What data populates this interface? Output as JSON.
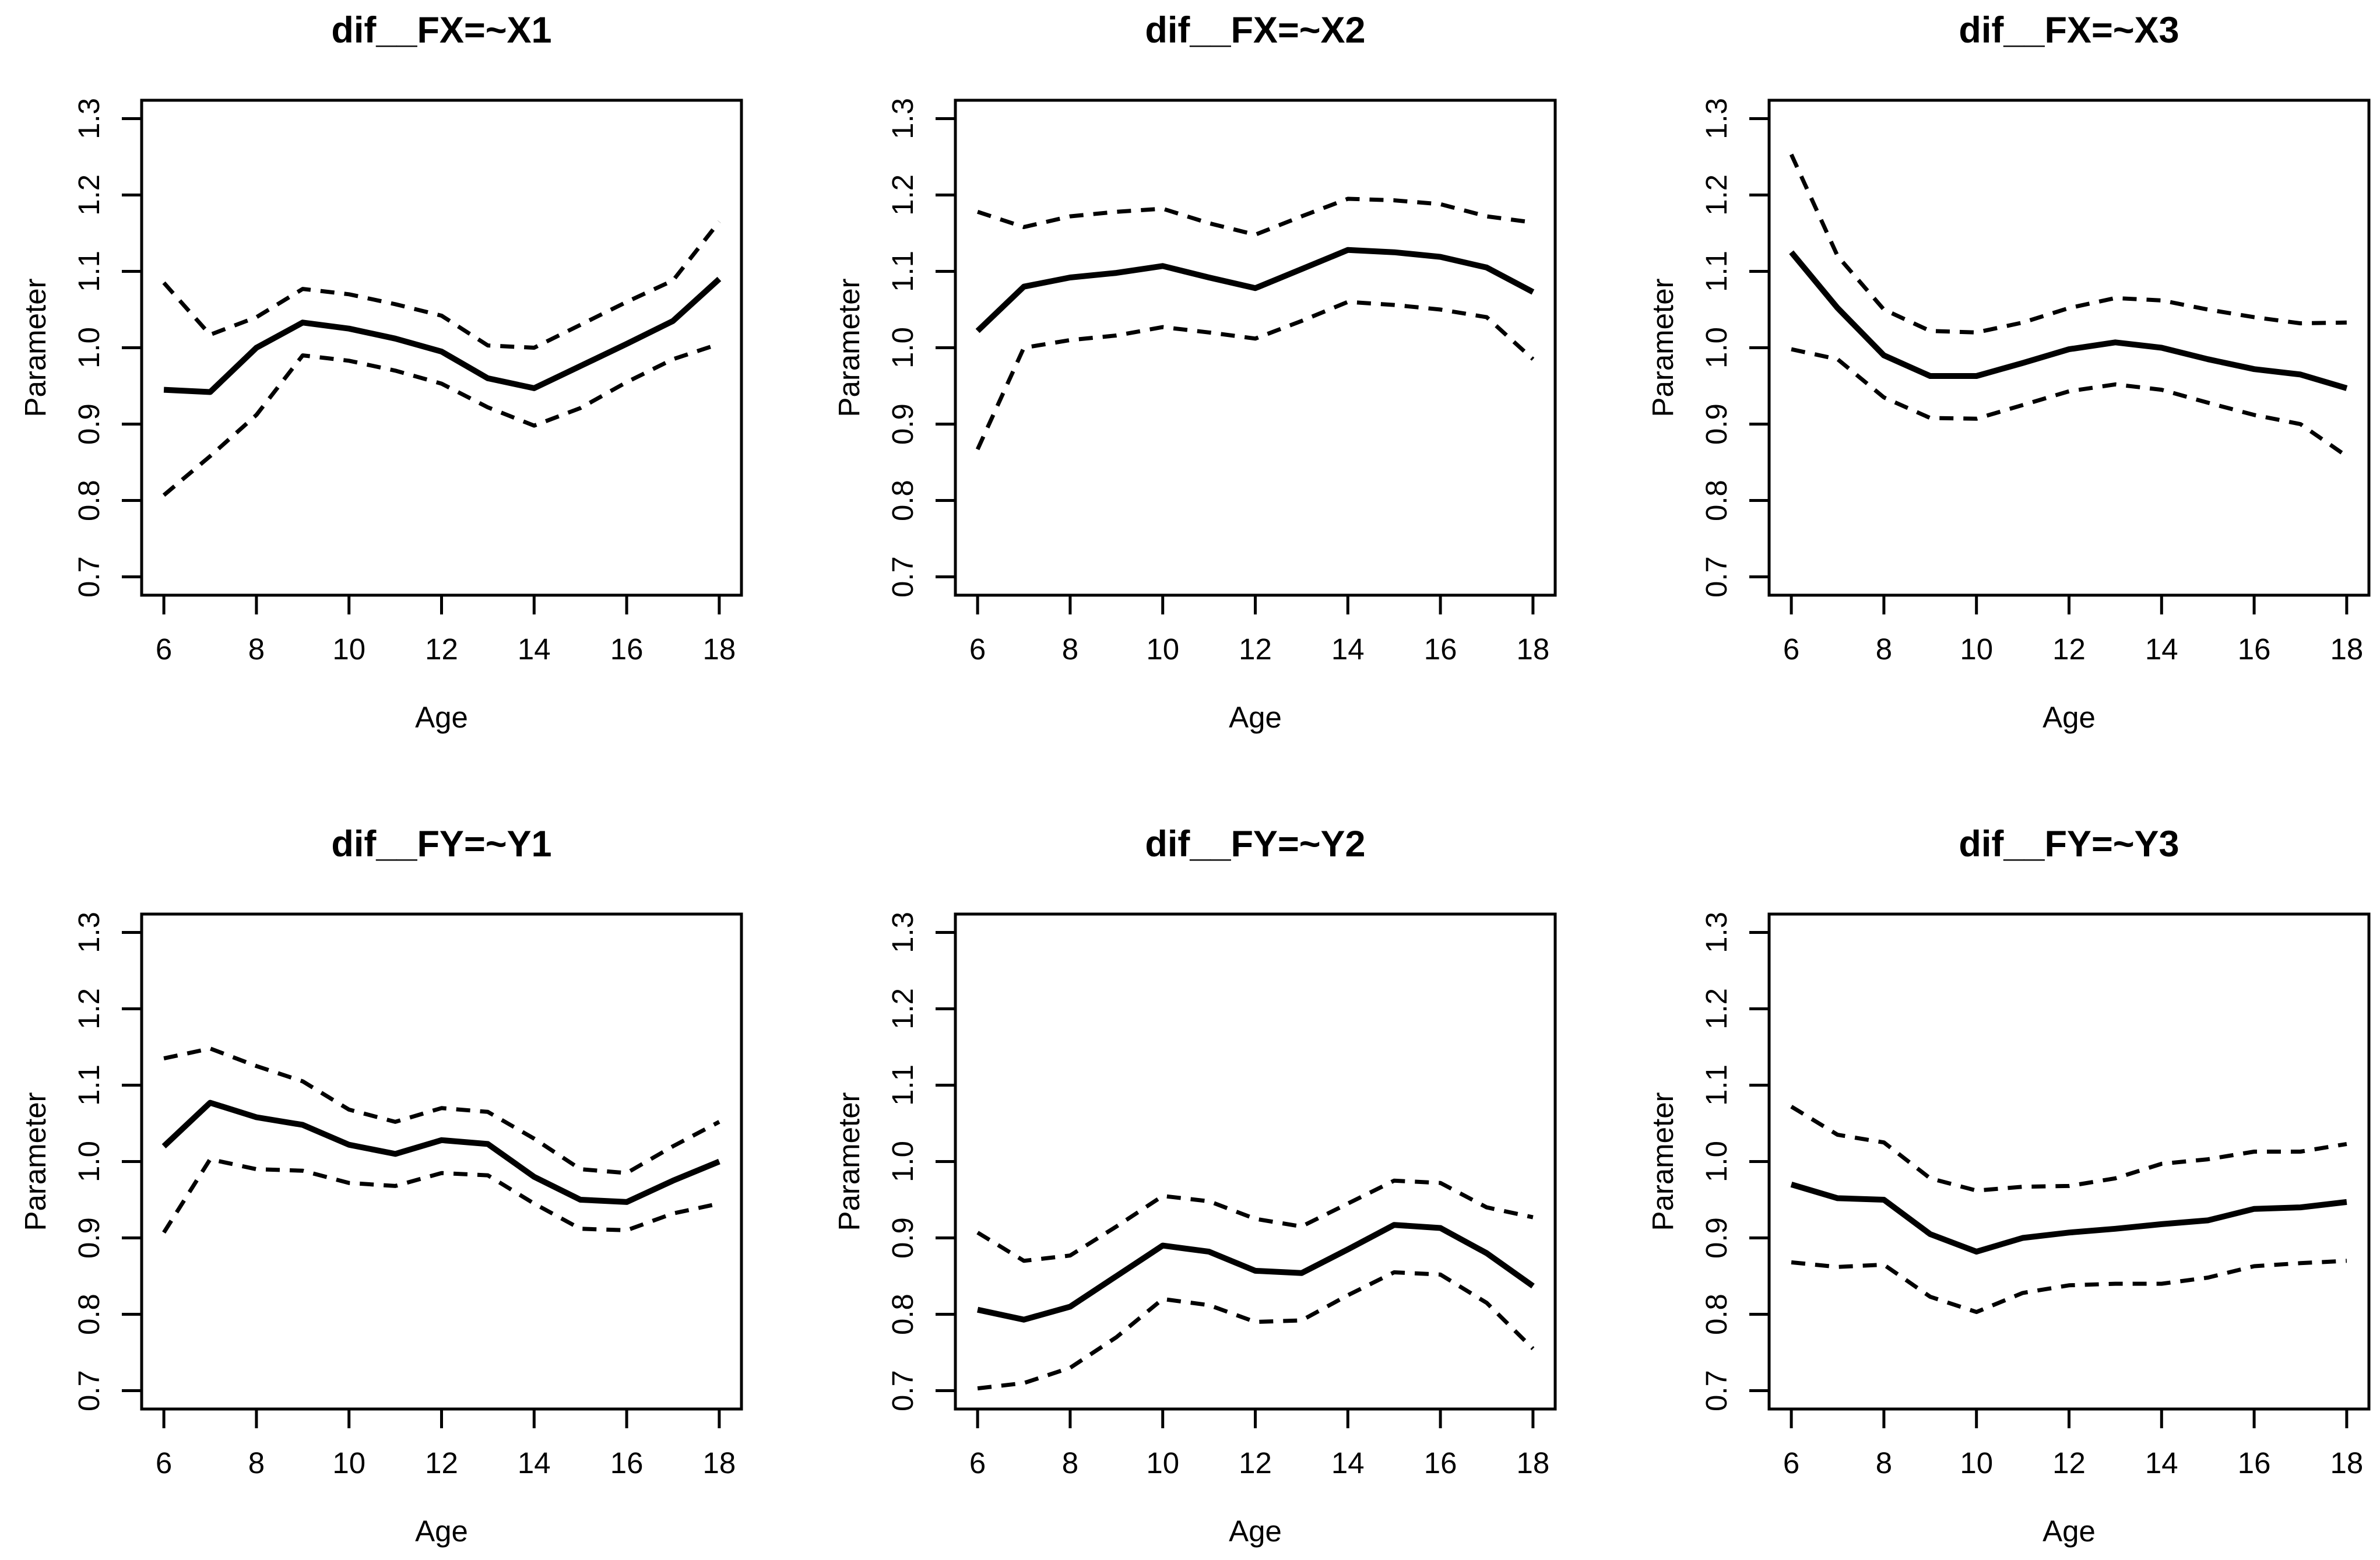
{
  "figure": {
    "background_color": "#ffffff",
    "foreground_color": "#000000",
    "x_axis_label": "Age",
    "y_axis_label": "Parameter",
    "x_tick_labels": [
      "6",
      "8",
      "10",
      "12",
      "14",
      "16",
      "18"
    ],
    "y_tick_labels": [
      "0.7",
      "0.8",
      "0.9",
      "1.0",
      "1.1",
      "1.2",
      "1.3"
    ]
  },
  "chart_data": [
    {
      "type": "line",
      "title": "dif__FX=~X1",
      "xlabel": "Age",
      "ylabel": "Parameter",
      "xlim": [
        6,
        18
      ],
      "ylim": [
        0.7,
        1.3
      ],
      "grid": false,
      "legend": "none",
      "x": [
        6,
        7,
        8,
        9,
        10,
        11,
        12,
        13,
        14,
        15,
        16,
        17,
        18
      ],
      "series": [
        {
          "name": "estimate",
          "line": "solid",
          "values": [
            0.945,
            0.942,
            1.0,
            1.033,
            1.025,
            1.012,
            0.995,
            0.96,
            0.947,
            0.976,
            1.005,
            1.035,
            1.09
          ]
        },
        {
          "name": "upper-ci",
          "line": "dashed",
          "values": [
            1.085,
            1.017,
            1.04,
            1.077,
            1.07,
            1.057,
            1.042,
            1.003,
            1.0,
            1.03,
            1.06,
            1.088,
            1.165
          ]
        },
        {
          "name": "lower-ci",
          "line": "dashed",
          "values": [
            0.807,
            0.858,
            0.912,
            0.99,
            0.983,
            0.97,
            0.953,
            0.922,
            0.898,
            0.921,
            0.955,
            0.985,
            1.005
          ]
        }
      ]
    },
    {
      "type": "line",
      "title": "dif__FX=~X2",
      "xlabel": "Age",
      "ylabel": "Parameter",
      "xlim": [
        6,
        18
      ],
      "ylim": [
        0.7,
        1.3
      ],
      "grid": false,
      "legend": "none",
      "x": [
        6,
        7,
        8,
        9,
        10,
        11,
        12,
        13,
        14,
        15,
        16,
        17,
        18
      ],
      "series": [
        {
          "name": "estimate",
          "line": "solid",
          "values": [
            1.022,
            1.08,
            1.092,
            1.098,
            1.107,
            1.092,
            1.078,
            1.103,
            1.128,
            1.125,
            1.119,
            1.105,
            1.073
          ]
        },
        {
          "name": "upper-ci",
          "line": "dashed",
          "values": [
            1.178,
            1.158,
            1.172,
            1.178,
            1.182,
            1.163,
            1.148,
            1.172,
            1.195,
            1.193,
            1.188,
            1.172,
            1.164
          ]
        },
        {
          "name": "lower-ci",
          "line": "dashed",
          "values": [
            0.867,
            1.0,
            1.01,
            1.016,
            1.027,
            1.02,
            1.012,
            1.035,
            1.06,
            1.056,
            1.05,
            1.04,
            0.985
          ]
        }
      ]
    },
    {
      "type": "line",
      "title": "dif__FX=~X3",
      "xlabel": "Age",
      "ylabel": "Parameter",
      "xlim": [
        6,
        18
      ],
      "ylim": [
        0.7,
        1.3
      ],
      "grid": false,
      "legend": "none",
      "x": [
        6,
        7,
        8,
        9,
        10,
        11,
        12,
        13,
        14,
        15,
        16,
        17,
        18
      ],
      "series": [
        {
          "name": "estimate",
          "line": "solid",
          "values": [
            1.125,
            1.052,
            0.99,
            0.963,
            0.963,
            0.98,
            0.998,
            1.007,
            1.0,
            0.985,
            0.972,
            0.965,
            0.947
          ]
        },
        {
          "name": "upper-ci",
          "line": "dashed",
          "values": [
            1.253,
            1.12,
            1.05,
            1.022,
            1.02,
            1.033,
            1.052,
            1.065,
            1.062,
            1.05,
            1.04,
            1.032,
            1.033
          ]
        },
        {
          "name": "lower-ci",
          "line": "dashed",
          "values": [
            0.998,
            0.985,
            0.935,
            0.908,
            0.907,
            0.925,
            0.943,
            0.952,
            0.945,
            0.928,
            0.912,
            0.9,
            0.858
          ]
        }
      ]
    },
    {
      "type": "line",
      "title": "dif__FY=~Y1",
      "xlabel": "Age",
      "ylabel": "Parameter",
      "xlim": [
        6,
        18
      ],
      "ylim": [
        0.7,
        1.3
      ],
      "grid": false,
      "legend": "none",
      "x": [
        6,
        7,
        8,
        9,
        10,
        11,
        12,
        13,
        14,
        15,
        16,
        17,
        18
      ],
      "series": [
        {
          "name": "estimate",
          "line": "solid",
          "values": [
            1.02,
            1.077,
            1.058,
            1.048,
            1.022,
            1.01,
            1.028,
            1.023,
            0.98,
            0.95,
            0.947,
            0.975,
            1.0
          ]
        },
        {
          "name": "upper-ci",
          "line": "dashed",
          "values": [
            1.135,
            1.148,
            1.125,
            1.105,
            1.068,
            1.052,
            1.07,
            1.065,
            1.03,
            0.99,
            0.985,
            1.02,
            1.052
          ]
        },
        {
          "name": "lower-ci",
          "line": "dashed",
          "values": [
            0.907,
            1.003,
            0.99,
            0.988,
            0.972,
            0.968,
            0.985,
            0.982,
            0.945,
            0.912,
            0.91,
            0.932,
            0.945
          ]
        }
      ]
    },
    {
      "type": "line",
      "title": "dif__FY=~Y2",
      "xlabel": "Age",
      "ylabel": "Parameter",
      "xlim": [
        6,
        18
      ],
      "ylim": [
        0.7,
        1.3
      ],
      "grid": false,
      "legend": "none",
      "x": [
        6,
        7,
        8,
        9,
        10,
        11,
        12,
        13,
        14,
        15,
        16,
        17,
        18
      ],
      "series": [
        {
          "name": "estimate",
          "line": "solid",
          "values": [
            0.806,
            0.793,
            0.81,
            0.85,
            0.89,
            0.882,
            0.857,
            0.854,
            0.885,
            0.917,
            0.913,
            0.88,
            0.837
          ]
        },
        {
          "name": "upper-ci",
          "line": "dashed",
          "values": [
            0.907,
            0.87,
            0.877,
            0.915,
            0.955,
            0.948,
            0.925,
            0.915,
            0.945,
            0.975,
            0.972,
            0.94,
            0.927
          ]
        },
        {
          "name": "lower-ci",
          "line": "dashed",
          "values": [
            0.703,
            0.71,
            0.73,
            0.77,
            0.82,
            0.812,
            0.79,
            0.792,
            0.825,
            0.855,
            0.852,
            0.815,
            0.755
          ]
        }
      ]
    },
    {
      "type": "line",
      "title": "dif__FY=~Y3",
      "xlabel": "Age",
      "ylabel": "Parameter",
      "xlim": [
        6,
        18
      ],
      "ylim": [
        0.7,
        1.3
      ],
      "grid": false,
      "legend": "none",
      "x": [
        6,
        7,
        8,
        9,
        10,
        11,
        12,
        13,
        14,
        15,
        16,
        17,
        18
      ],
      "series": [
        {
          "name": "estimate",
          "line": "solid",
          "values": [
            0.97,
            0.952,
            0.95,
            0.905,
            0.882,
            0.9,
            0.907,
            0.912,
            0.918,
            0.923,
            0.938,
            0.94,
            0.947
          ]
        },
        {
          "name": "upper-ci",
          "line": "dashed",
          "values": [
            1.072,
            1.035,
            1.025,
            0.978,
            0.962,
            0.967,
            0.968,
            0.978,
            0.997,
            1.003,
            1.013,
            1.013,
            1.023
          ]
        },
        {
          "name": "lower-ci",
          "line": "dashed",
          "values": [
            0.868,
            0.862,
            0.865,
            0.823,
            0.803,
            0.828,
            0.838,
            0.84,
            0.84,
            0.848,
            0.863,
            0.867,
            0.87
          ]
        }
      ]
    }
  ]
}
